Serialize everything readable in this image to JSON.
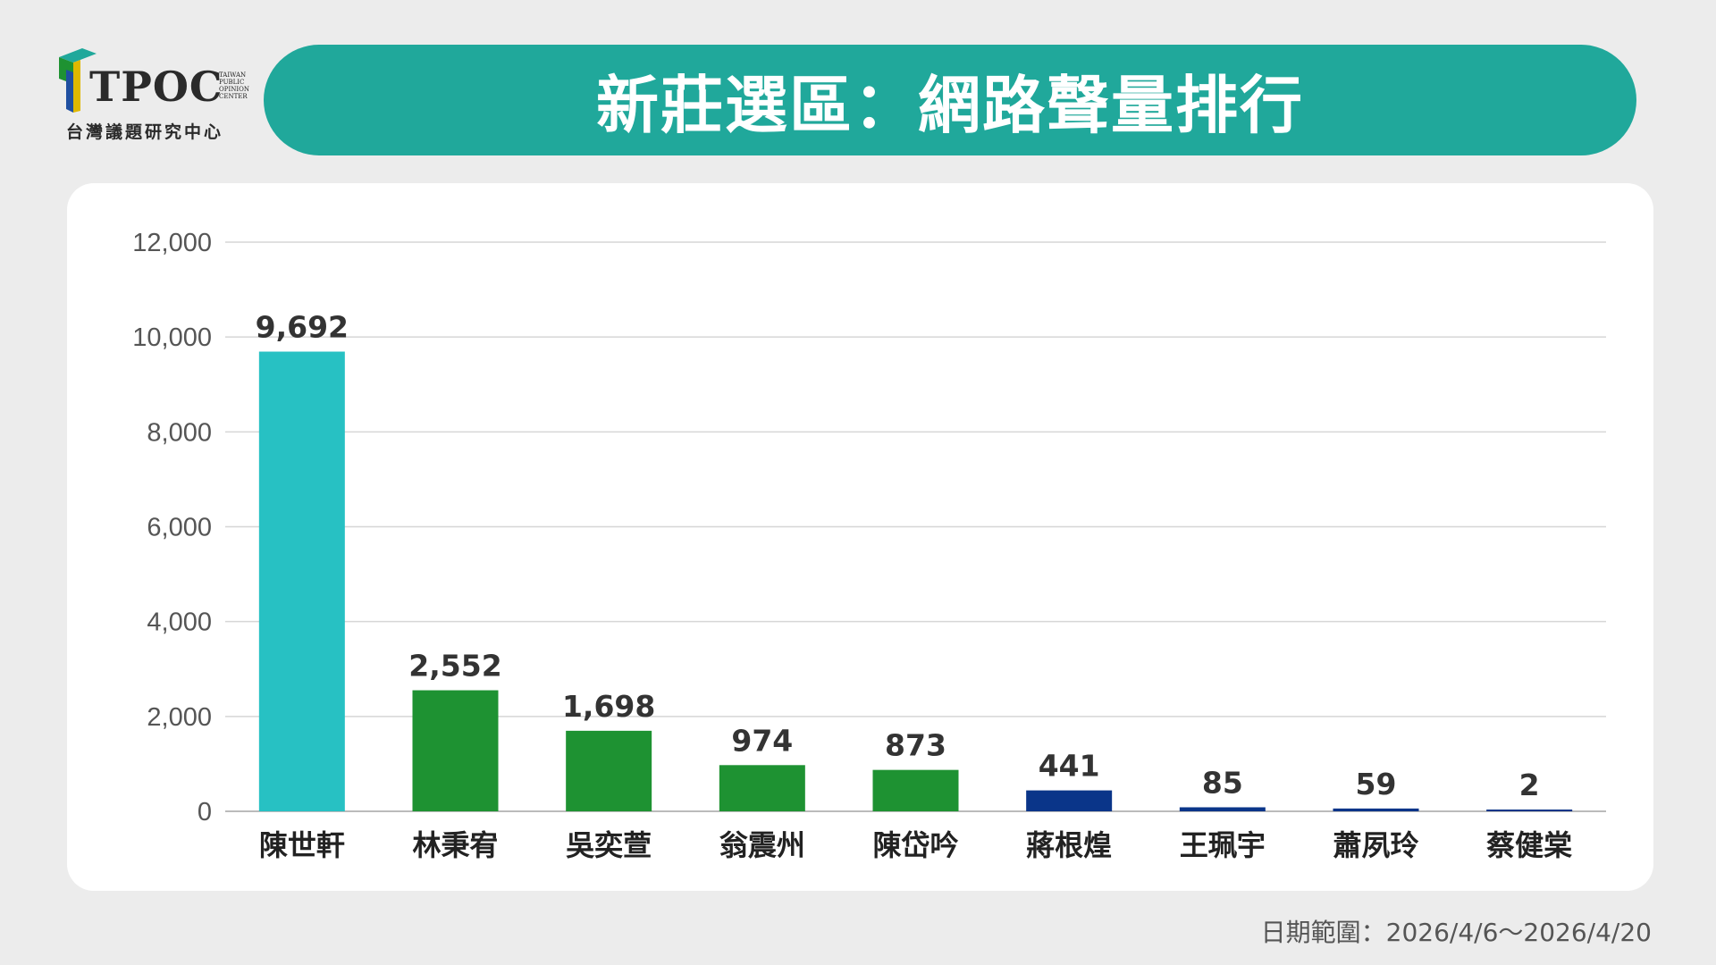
{
  "header": {
    "logo_text": "TPOC",
    "logo_small_lines": [
      "TAIWAN",
      "PUBLIC",
      "OPINION",
      "CENTER"
    ],
    "logo_subtitle": "台灣議題研究中心",
    "title": "新莊選區：網路聲量排行"
  },
  "colors": {
    "banner": "#20a89b",
    "highlight_bar": "#27c1c3",
    "green_bar": "#1e9232",
    "blue_bar": "#0a3589"
  },
  "chart_data": {
    "type": "bar",
    "categories": [
      "陳世軒",
      "林秉宥",
      "吳奕萱",
      "翁震州",
      "陳岱吟",
      "蔣根煌",
      "王珮宇",
      "蕭夙玲",
      "蔡健棠"
    ],
    "values": [
      9692,
      2552,
      1698,
      974,
      873,
      441,
      85,
      59,
      2
    ],
    "data_labels": [
      "9,692",
      "2,552",
      "1,698",
      "974",
      "873",
      "441",
      "85",
      "59",
      "2"
    ],
    "bar_colors": [
      "#27c1c3",
      "#1e9232",
      "#1e9232",
      "#1e9232",
      "#1e9232",
      "#0a3589",
      "#0a3589",
      "#0a3589",
      "#0a3589"
    ],
    "ylim": [
      0,
      12000
    ],
    "yticks": [
      0,
      2000,
      4000,
      6000,
      8000,
      10000,
      12000
    ],
    "ytick_labels": [
      "0",
      "2,000",
      "4,000",
      "6,000",
      "8,000",
      "10,000",
      "12,000"
    ],
    "grid": true,
    "legend": "none"
  },
  "footer": {
    "date_range": "日期範圍：2026/4/6～2026/4/20"
  }
}
